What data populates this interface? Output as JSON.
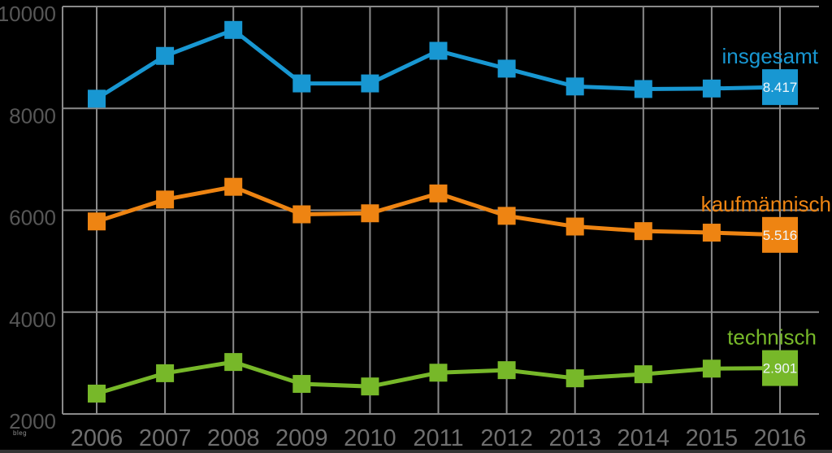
{
  "watermark": "bleg",
  "chart": {
    "background": "#000000",
    "grid_color": "#8a8a8a",
    "x_tick_color": "#6f6f6f",
    "y_tick_color": "#575757",
    "value_label_color": "#eef6fb"
  },
  "chart_data": {
    "type": "line",
    "title": "",
    "xlabel": "",
    "ylabel": "",
    "x": [
      2006,
      2007,
      2008,
      2009,
      2010,
      2011,
      2012,
      2013,
      2014,
      2015,
      2016
    ],
    "yticks": [
      2000,
      4000,
      6000,
      8000,
      10000
    ],
    "ylim": [
      2000,
      10000
    ],
    "grid": true,
    "legend_position": "right-end-labels",
    "series": [
      {
        "name": "insgesamt",
        "color": "#1897d2",
        "values": [
          8190,
          9030,
          9540,
          8490,
          8490,
          9130,
          8780,
          8430,
          8380,
          8390,
          8417
        ],
        "end_label": "8.417"
      },
      {
        "name": "kaufmännisch",
        "color": "#ee8412",
        "values": [
          5780,
          6210,
          6460,
          5920,
          5940,
          6330,
          5890,
          5680,
          5590,
          5560,
          5516
        ],
        "end_label": "5.516"
      },
      {
        "name": "technisch",
        "color": "#77b829",
        "values": [
          2400,
          2800,
          3020,
          2590,
          2540,
          2810,
          2860,
          2700,
          2780,
          2890,
          2901
        ],
        "end_label": "2.901"
      }
    ]
  }
}
